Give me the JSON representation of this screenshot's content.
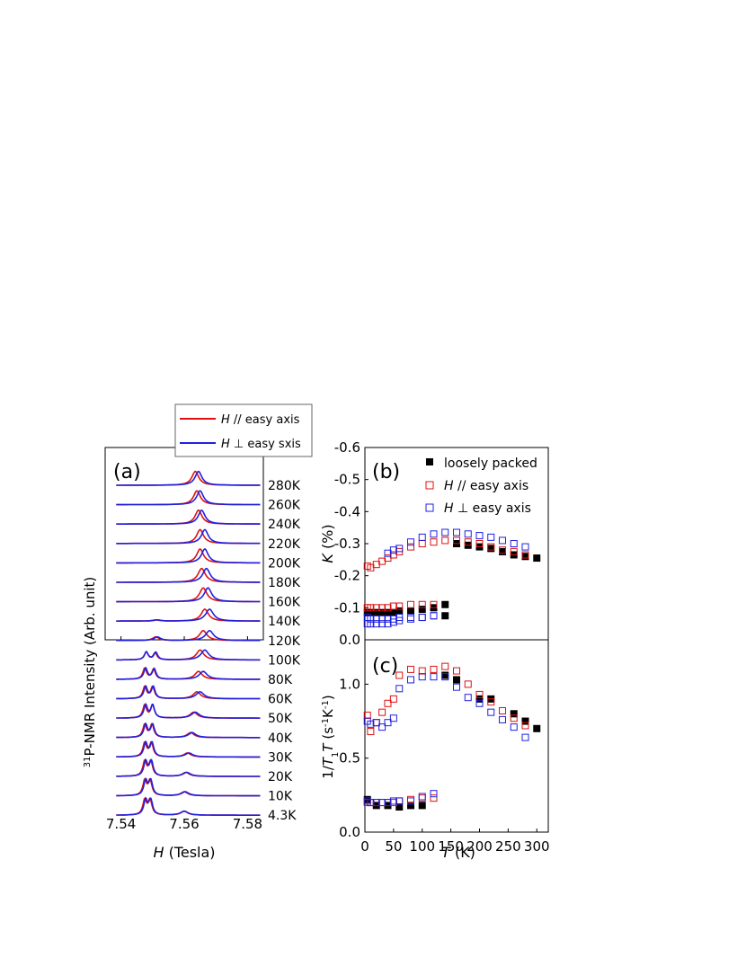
{
  "colors": {
    "parallel": "#e01010",
    "perp": "#2020e0",
    "loose": "#000000",
    "axis": "#000000"
  },
  "chart_data": [
    {
      "type": "line",
      "panel_label": "(a)",
      "xlabel_italic": "H",
      "xlabel_rest": " (Tesla)",
      "ylabel_super": "31",
      "ylabel_rest": "P-NMR Intensity (Arb. unit)",
      "xlim": [
        7.535,
        7.585
      ],
      "xticks": [
        7.54,
        7.56,
        7.58
      ],
      "tick_labels": [
        "7.54",
        "7.56",
        "7.58"
      ],
      "legend": {
        "placement": "top",
        "entries": [
          {
            "italic": "H",
            "rest": " // easy axis",
            "color_key": "parallel"
          },
          {
            "italic": "H",
            "rest": " ⊥ easy sxis",
            "color_key": "perp"
          }
        ]
      },
      "spectra": [
        {
          "label": "280K",
          "red": [
            [
              7.5635,
              0.7,
              0.0013
            ]
          ],
          "blue": [
            [
              7.5645,
              0.7,
              0.0013
            ]
          ]
        },
        {
          "label": "260K",
          "red": [
            [
              7.564,
              0.7,
              0.0013
            ]
          ],
          "blue": [
            [
              7.565,
              0.7,
              0.0013
            ]
          ]
        },
        {
          "label": "240K",
          "red": [
            [
              7.5645,
              0.7,
              0.0013
            ]
          ],
          "blue": [
            [
              7.5655,
              0.7,
              0.0013
            ]
          ]
        },
        {
          "label": "220K",
          "red": [
            [
              7.565,
              0.7,
              0.0013
            ]
          ],
          "blue": [
            [
              7.5665,
              0.7,
              0.0013
            ]
          ]
        },
        {
          "label": "200K",
          "red": [
            [
              7.565,
              0.7,
              0.0013
            ]
          ],
          "blue": [
            [
              7.5665,
              0.7,
              0.0013
            ]
          ]
        },
        {
          "label": "180K",
          "red": [
            [
              7.5655,
              0.7,
              0.0014
            ]
          ],
          "blue": [
            [
              7.567,
              0.7,
              0.0014
            ]
          ]
        },
        {
          "label": "160K",
          "red": [
            [
              7.566,
              0.7,
              0.0014
            ]
          ],
          "blue": [
            [
              7.5675,
              0.7,
              0.0014
            ]
          ]
        },
        {
          "label": "140K",
          "red": [
            [
              7.5665,
              0.6,
              0.0014
            ],
            [
              7.551,
              0.06,
              0.0012
            ]
          ],
          "blue": [
            [
              7.568,
              0.6,
              0.0015
            ],
            [
              7.5515,
              0.06,
              0.0012
            ]
          ]
        },
        {
          "label": "120K",
          "red": [
            [
              7.566,
              0.5,
              0.0014
            ],
            [
              7.551,
              0.18,
              0.0012
            ]
          ],
          "blue": [
            [
              7.568,
              0.5,
              0.0015
            ],
            [
              7.5515,
              0.18,
              0.0012
            ]
          ]
        },
        {
          "label": "100K",
          "red": [
            [
              7.565,
              0.5,
              0.0014
            ],
            [
              7.548,
              0.4,
              0.0007
            ],
            [
              7.5508,
              0.35,
              0.0007
            ]
          ],
          "blue": [
            [
              7.5665,
              0.5,
              0.0015
            ],
            [
              7.548,
              0.4,
              0.0007
            ],
            [
              7.551,
              0.38,
              0.0007
            ]
          ]
        },
        {
          "label": "80K",
          "red": [
            [
              7.5645,
              0.4,
              0.0014
            ],
            [
              7.5475,
              0.55,
              0.0007
            ],
            [
              7.5503,
              0.5,
              0.0007
            ]
          ],
          "blue": [
            [
              7.566,
              0.4,
              0.0015
            ],
            [
              7.5478,
              0.55,
              0.0007
            ],
            [
              7.5505,
              0.52,
              0.0007
            ]
          ]
        },
        {
          "label": "60K",
          "red": [
            [
              7.564,
              0.35,
              0.0014
            ],
            [
              7.5475,
              0.6,
              0.0007
            ],
            [
              7.55,
              0.6,
              0.0007
            ]
          ],
          "blue": [
            [
              7.565,
              0.35,
              0.0015
            ],
            [
              7.5478,
              0.6,
              0.0007
            ],
            [
              7.5502,
              0.6,
              0.0007
            ]
          ]
        },
        {
          "label": "50K",
          "red": [
            [
              7.563,
              0.3,
              0.0014
            ],
            [
              7.5475,
              0.65,
              0.0007
            ],
            [
              7.55,
              0.65,
              0.0007
            ]
          ],
          "blue": [
            [
              7.5635,
              0.3,
              0.0015
            ],
            [
              7.5478,
              0.65,
              0.0007
            ],
            [
              7.55,
              0.65,
              0.0007
            ]
          ]
        },
        {
          "label": "40K",
          "red": [
            [
              7.562,
              0.25,
              0.0013
            ],
            [
              7.5475,
              0.65,
              0.0007
            ],
            [
              7.5498,
              0.65,
              0.0007
            ]
          ],
          "blue": [
            [
              7.5625,
              0.25,
              0.0014
            ],
            [
              7.5478,
              0.65,
              0.0007
            ],
            [
              7.55,
              0.65,
              0.0007
            ]
          ]
        },
        {
          "label": "30K",
          "red": [
            [
              7.561,
              0.2,
              0.0013
            ],
            [
              7.5475,
              0.7,
              0.0007
            ],
            [
              7.5496,
              0.7,
              0.0007
            ]
          ],
          "blue": [
            [
              7.5615,
              0.2,
              0.0014
            ],
            [
              7.5478,
              0.7,
              0.0007
            ],
            [
              7.5498,
              0.7,
              0.0007
            ]
          ]
        },
        {
          "label": "20K",
          "red": [
            [
              7.5605,
              0.2,
              0.0013
            ],
            [
              7.5475,
              0.75,
              0.0007
            ],
            [
              7.5494,
              0.75,
              0.0007
            ]
          ],
          "blue": [
            [
              7.5608,
              0.2,
              0.0014
            ],
            [
              7.5478,
              0.75,
              0.0007
            ],
            [
              7.5496,
              0.75,
              0.0007
            ]
          ]
        },
        {
          "label": "10K",
          "red": [
            [
              7.56,
              0.2,
              0.0013
            ],
            [
              7.5475,
              0.75,
              0.0007
            ],
            [
              7.5492,
              0.75,
              0.0007
            ]
          ],
          "blue": [
            [
              7.5603,
              0.2,
              0.0014
            ],
            [
              7.5478,
              0.75,
              0.0007
            ],
            [
              7.5494,
              0.75,
              0.0007
            ]
          ]
        },
        {
          "label": "4.3K",
          "red": [
            [
              7.56,
              0.2,
              0.0013
            ],
            [
              7.5475,
              0.75,
              0.0007
            ],
            [
              7.5492,
              0.75,
              0.0007
            ]
          ],
          "blue": [
            [
              7.56,
              0.2,
              0.0014
            ],
            [
              7.5478,
              0.75,
              0.0007
            ],
            [
              7.5494,
              0.75,
              0.0007
            ]
          ]
        }
      ]
    },
    {
      "type": "scatter",
      "panel_label": "(b)",
      "xlabel": "",
      "ylabel_italic": "K",
      "ylabel_rest": " (%)",
      "xlim": [
        0,
        320
      ],
      "ylim": [
        0.0,
        -0.6
      ],
      "yticks": [
        0.0,
        -0.1,
        -0.2,
        -0.3,
        -0.4,
        -0.5,
        -0.6
      ],
      "ytick_labels": [
        "0.0",
        "-0.1",
        "-0.2",
        "-0.3",
        "-0.4",
        "-0.5",
        "-0.6"
      ],
      "legend": {
        "placement": "top-right",
        "entries": [
          {
            "italic": "",
            "rest": "loosely packed",
            "color_key": "loose",
            "filled": true
          },
          {
            "italic": "H",
            "rest": " // easy axis",
            "color_key": "parallel",
            "filled": false
          },
          {
            "italic": "H",
            "rest": " ⊥ easy axis",
            "color_key": "perp",
            "filled": false
          }
        ]
      },
      "series": [
        {
          "name": "loosely packed",
          "color_key": "loose",
          "filled": true,
          "x": [
            4.3,
            10,
            20,
            30,
            40,
            50,
            60,
            80,
            100,
            120,
            140,
            140,
            160,
            180,
            200,
            220,
            240,
            260,
            280,
            300
          ],
          "y": [
            -0.085,
            -0.085,
            -0.085,
            -0.085,
            -0.085,
            -0.085,
            -0.09,
            -0.09,
            -0.095,
            -0.1,
            -0.11,
            -0.075,
            -0.3,
            -0.295,
            -0.29,
            -0.285,
            -0.275,
            -0.265,
            -0.26,
            -0.255
          ]
        },
        {
          "name": "H // easy axis",
          "color_key": "parallel",
          "filled": false,
          "x": [
            4.3,
            10,
            20,
            30,
            40,
            50,
            60,
            80,
            100,
            120,
            140,
            160,
            180,
            200,
            220,
            240,
            260,
            280,
            4.3,
            10,
            20,
            30,
            40,
            50,
            60,
            80,
            100,
            120
          ],
          "y": [
            -0.23,
            -0.225,
            -0.235,
            -0.245,
            -0.255,
            -0.265,
            -0.275,
            -0.29,
            -0.3,
            -0.305,
            -0.31,
            -0.31,
            -0.305,
            -0.3,
            -0.29,
            -0.28,
            -0.275,
            -0.265,
            -0.1,
            -0.1,
            -0.1,
            -0.1,
            -0.1,
            -0.105,
            -0.105,
            -0.11,
            -0.11,
            -0.11
          ]
        },
        {
          "name": "H ⊥ easy axis",
          "color_key": "perp",
          "filled": false,
          "x": [
            40,
            50,
            60,
            80,
            100,
            120,
            140,
            160,
            180,
            200,
            220,
            240,
            260,
            280,
            4.3,
            10,
            20,
            30,
            40,
            50,
            60,
            80,
            100,
            120,
            4.3,
            10,
            20,
            30,
            40,
            50,
            60,
            80,
            100,
            120
          ],
          "y": [
            -0.27,
            -0.28,
            -0.285,
            -0.305,
            -0.32,
            -0.33,
            -0.335,
            -0.335,
            -0.33,
            -0.325,
            -0.32,
            -0.31,
            -0.3,
            -0.29,
            -0.05,
            -0.05,
            -0.05,
            -0.05,
            -0.05,
            -0.055,
            -0.06,
            -0.065,
            -0.07,
            -0.075,
            -0.07,
            -0.065,
            -0.065,
            -0.065,
            -0.065,
            -0.065,
            -0.07,
            -0.07,
            -0.07,
            -0.075
          ]
        }
      ]
    },
    {
      "type": "scatter",
      "panel_label": "(c)",
      "xlabel_italic": "T",
      "xlabel_rest": " (K)",
      "ylabel_html": "1/T1T (s-1K-1)",
      "xlim": [
        0,
        320
      ],
      "ylim": [
        0.0,
        1.3
      ],
      "xticks": [
        0,
        50,
        100,
        150,
        200,
        250,
        300
      ],
      "xtick_labels": [
        "0",
        "50",
        "100",
        "150",
        "200",
        "250",
        "300"
      ],
      "yticks": [
        0.0,
        0.5,
        1.0
      ],
      "ytick_labels": [
        "0.0",
        "0.5",
        "1.0"
      ],
      "series": [
        {
          "name": "loosely packed",
          "color_key": "loose",
          "filled": true,
          "x": [
            4.3,
            20,
            40,
            60,
            80,
            100,
            140,
            160,
            200,
            220,
            260,
            280,
            300
          ],
          "y": [
            0.22,
            0.18,
            0.18,
            0.17,
            0.18,
            0.18,
            1.06,
            1.03,
            0.9,
            0.9,
            0.8,
            0.75,
            0.7
          ]
        },
        {
          "name": "H // easy axis",
          "color_key": "parallel",
          "filled": false,
          "x": [
            4.3,
            10,
            20,
            30,
            40,
            50,
            60,
            80,
            100,
            120,
            140,
            160,
            180,
            200,
            220,
            240,
            260,
            280,
            4.3,
            10,
            20,
            30,
            40,
            50,
            60,
            80,
            100,
            120
          ],
          "y": [
            0.79,
            0.68,
            0.74,
            0.81,
            0.87,
            0.9,
            1.06,
            1.1,
            1.09,
            1.1,
            1.12,
            1.09,
            1.0,
            0.93,
            0.88,
            0.82,
            0.77,
            0.72,
            0.2,
            0.2,
            0.2,
            0.2,
            0.2,
            0.2,
            0.21,
            0.22,
            0.23,
            0.23
          ]
        },
        {
          "name": "H ⊥ easy axis",
          "color_key": "perp",
          "filled": false,
          "x": [
            4.3,
            10,
            20,
            30,
            40,
            50,
            60,
            80,
            100,
            120,
            140,
            160,
            180,
            200,
            220,
            240,
            260,
            280,
            4.3,
            10,
            20,
            30,
            40,
            50,
            60,
            80,
            100,
            120
          ],
          "y": [
            0.75,
            0.73,
            0.74,
            0.71,
            0.74,
            0.77,
            0.97,
            1.03,
            1.05,
            1.05,
            1.05,
            0.98,
            0.91,
            0.87,
            0.81,
            0.76,
            0.71,
            0.64,
            0.21,
            0.2,
            0.2,
            0.2,
            0.2,
            0.21,
            0.21,
            0.21,
            0.24,
            0.26
          ]
        }
      ]
    }
  ]
}
